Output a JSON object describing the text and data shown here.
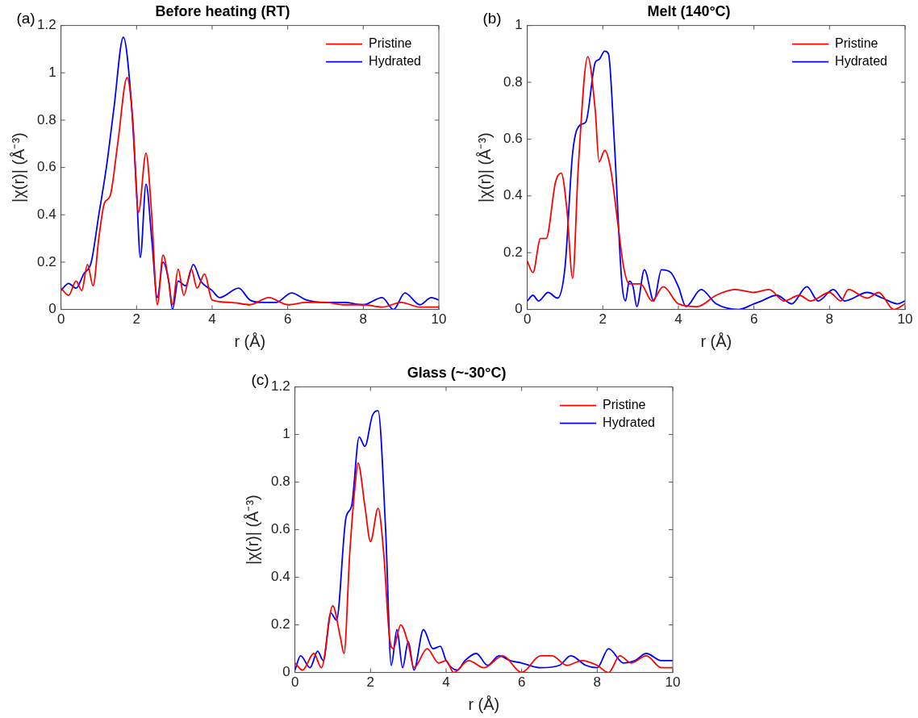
{
  "chart_data": [
    {
      "type": "line",
      "title": "Before heating (RT)",
      "xlabel": "r (Å)",
      "ylabel": "|χ(r)| (Å⁻³)",
      "annotations": [
        "(a)"
      ],
      "xlim": [
        0,
        10
      ],
      "xticks": [
        0,
        2,
        4,
        6,
        8,
        10
      ],
      "ylim": [
        0,
        1.2
      ],
      "yticks": [
        0,
        0.2,
        0.4,
        0.6,
        0.8,
        1,
        1.2
      ],
      "grid": false,
      "legend": "top right",
      "marker": "none",
      "line_style": "solid",
      "series": [
        {
          "name": "Pristine",
          "color": "#ff0000",
          "x": [
            0,
            0.2,
            0.4,
            0.55,
            0.7,
            0.85,
            1.0,
            1.15,
            1.3,
            1.5,
            1.75,
            1.9,
            2.05,
            2.25,
            2.4,
            2.55,
            2.7,
            2.85,
            2.95,
            3.1,
            3.25,
            3.45,
            3.6,
            3.8,
            4.0,
            4.5,
            5,
            5.5,
            6,
            6.5,
            7,
            7.5,
            8,
            8.5,
            9,
            9.5,
            10
          ],
          "values": [
            0.09,
            0.06,
            0.12,
            0.08,
            0.19,
            0.1,
            0.3,
            0.45,
            0.48,
            0.7,
            0.98,
            0.8,
            0.41,
            0.66,
            0.4,
            0.02,
            0.23,
            0.12,
            0.02,
            0.17,
            0.06,
            0.17,
            0.09,
            0.15,
            0.04,
            0.03,
            0.02,
            0.05,
            0.02,
            0.03,
            0.03,
            0.02,
            0.02,
            0.01,
            0.03,
            0.01,
            0.01
          ]
        },
        {
          "name": "Hydrated",
          "color": "#0000ff",
          "x": [
            0,
            0.2,
            0.4,
            0.6,
            0.8,
            1.0,
            1.2,
            1.4,
            1.65,
            1.85,
            2.0,
            2.1,
            2.25,
            2.4,
            2.55,
            2.7,
            2.85,
            2.95,
            3.1,
            3.3,
            3.5,
            3.7,
            4.0,
            4.2,
            4.7,
            5.0,
            5.3,
            5.7,
            6.1,
            6.5,
            7,
            7.5,
            8,
            8.5,
            8.8,
            9.1,
            9.5,
            9.8,
            10
          ],
          "values": [
            0.08,
            0.11,
            0.09,
            0.15,
            0.2,
            0.4,
            0.6,
            0.85,
            1.15,
            0.9,
            0.5,
            0.22,
            0.53,
            0.3,
            0.05,
            0.2,
            0.12,
            0.0,
            0.12,
            0.1,
            0.19,
            0.12,
            0.08,
            0.05,
            0.09,
            0.04,
            0.03,
            0.03,
            0.07,
            0.04,
            0.03,
            0.03,
            0.02,
            0.05,
            0.0,
            0.07,
            0.02,
            0.05,
            0.04
          ]
        }
      ]
    },
    {
      "type": "line",
      "title": "Melt (140°C)",
      "xlabel": "r (Å)",
      "ylabel": "|χ(r)| (Å⁻³)",
      "annotations": [
        "(b)"
      ],
      "xlim": [
        0,
        10
      ],
      "xticks": [
        0,
        2,
        4,
        6,
        8,
        10
      ],
      "ylim": [
        0,
        1
      ],
      "yticks": [
        0,
        0.2,
        0.4,
        0.6,
        0.8,
        1
      ],
      "grid": false,
      "legend": "top right",
      "marker": "none",
      "line_style": "solid",
      "series": [
        {
          "name": "Pristine",
          "color": "#ff0000",
          "x": [
            0,
            0.15,
            0.35,
            0.5,
            0.75,
            0.9,
            1.05,
            1.2,
            1.35,
            1.6,
            1.8,
            1.9,
            2.05,
            2.2,
            2.4,
            2.55,
            2.7,
            3.0,
            3.3,
            3.6,
            4.0,
            4.5,
            5,
            5.5,
            6,
            6.4,
            6.8,
            7.2,
            7.5,
            8.0,
            8.3,
            8.5,
            9.0,
            9.3,
            9.7,
            10
          ],
          "values": [
            0.17,
            0.13,
            0.25,
            0.25,
            0.45,
            0.48,
            0.35,
            0.11,
            0.5,
            0.89,
            0.7,
            0.52,
            0.56,
            0.5,
            0.3,
            0.15,
            0.09,
            0.09,
            0.03,
            0.08,
            0.02,
            0.01,
            0.05,
            0.07,
            0.06,
            0.07,
            0.03,
            0.05,
            0.03,
            0.06,
            0.03,
            0.07,
            0.04,
            0.06,
            0.0,
            0.02
          ]
        },
        {
          "name": "Hydrated",
          "color": "#0000ff",
          "x": [
            0,
            0.15,
            0.3,
            0.55,
            0.8,
            1.0,
            1.2,
            1.4,
            1.55,
            1.8,
            1.9,
            2.05,
            2.15,
            2.3,
            2.5,
            2.6,
            2.7,
            2.8,
            2.9,
            3.1,
            3.35,
            3.55,
            3.8,
            4.0,
            4.2,
            4.6,
            5.0,
            5.6,
            6.0,
            6.2,
            6.6,
            7.0,
            7.4,
            7.7,
            8.1,
            8.4,
            9.0,
            9.4,
            9.8,
            10
          ],
          "values": [
            0.03,
            0.05,
            0.03,
            0.06,
            0.04,
            0.15,
            0.55,
            0.65,
            0.66,
            0.87,
            0.88,
            0.91,
            0.9,
            0.6,
            0.1,
            0.03,
            0.1,
            0.08,
            0.01,
            0.14,
            0.03,
            0.14,
            0.13,
            0.08,
            0.01,
            0.07,
            0.02,
            0.0,
            0.02,
            0.03,
            0.05,
            0.02,
            0.08,
            0.03,
            0.07,
            0.03,
            0.06,
            0.04,
            0.02,
            0.03
          ]
        }
      ]
    },
    {
      "type": "line",
      "title": "Glass (~-30°C)",
      "xlabel": "r (Å)",
      "ylabel": "|χ(r)| (Å⁻³)",
      "annotations": [
        "(c)"
      ],
      "xlim": [
        0,
        10
      ],
      "xticks": [
        0,
        2,
        4,
        6,
        8,
        10
      ],
      "ylim": [
        0,
        1.2
      ],
      "yticks": [
        0,
        0.2,
        0.4,
        0.6,
        0.8,
        1,
        1.2
      ],
      "grid": false,
      "legend": "top right",
      "marker": "none",
      "line_style": "solid",
      "series": [
        {
          "name": "Pristine",
          "color": "#ff0000",
          "x": [
            0,
            0.2,
            0.5,
            0.7,
            1.0,
            1.2,
            1.3,
            1.45,
            1.6,
            1.67,
            1.85,
            2.0,
            2.2,
            2.35,
            2.5,
            2.6,
            2.8,
            3.0,
            3.15,
            3.5,
            3.8,
            4.0,
            4.2,
            4.6,
            5.0,
            5.5,
            6.0,
            6.5,
            6.8,
            7.2,
            7.6,
            8.0,
            8.3,
            8.6,
            8.9,
            9.3,
            9.7,
            10
          ],
          "values": [
            0.04,
            0.01,
            0.08,
            0.02,
            0.28,
            0.15,
            0.08,
            0.5,
            0.8,
            0.88,
            0.7,
            0.55,
            0.69,
            0.5,
            0.15,
            0.1,
            0.2,
            0.12,
            0.02,
            0.1,
            0.04,
            0.05,
            0.0,
            0.05,
            0.02,
            0.07,
            0.0,
            0.07,
            0.07,
            0.03,
            0.05,
            0.03,
            0.0,
            0.07,
            0.04,
            0.07,
            0.02,
            0.02
          ]
        },
        {
          "name": "Hydrated",
          "color": "#0000ff",
          "x": [
            0,
            0.15,
            0.4,
            0.6,
            0.75,
            0.95,
            1.1,
            1.35,
            1.5,
            1.7,
            1.85,
            2.05,
            2.2,
            2.4,
            2.55,
            2.7,
            2.85,
            3.0,
            3.15,
            3.4,
            3.65,
            3.85,
            4.0,
            4.3,
            4.5,
            4.8,
            5.1,
            5.4,
            5.7,
            6.0,
            6.5,
            7.0,
            7.3,
            7.7,
            8.0,
            8.3,
            8.7,
            9.0,
            9.3,
            9.7,
            10
          ],
          "values": [
            0.01,
            0.07,
            0.02,
            0.09,
            0.05,
            0.25,
            0.22,
            0.65,
            0.7,
            0.99,
            0.95,
            1.08,
            1.1,
            0.6,
            0.03,
            0.18,
            0.02,
            0.13,
            0.01,
            0.18,
            0.1,
            0.11,
            0.05,
            0.01,
            0.05,
            0.08,
            0.03,
            0.07,
            0.05,
            0.04,
            0.02,
            0.03,
            0.07,
            0.03,
            0.02,
            0.1,
            0.04,
            0.05,
            0.08,
            0.05,
            0.05
          ]
        }
      ]
    }
  ]
}
